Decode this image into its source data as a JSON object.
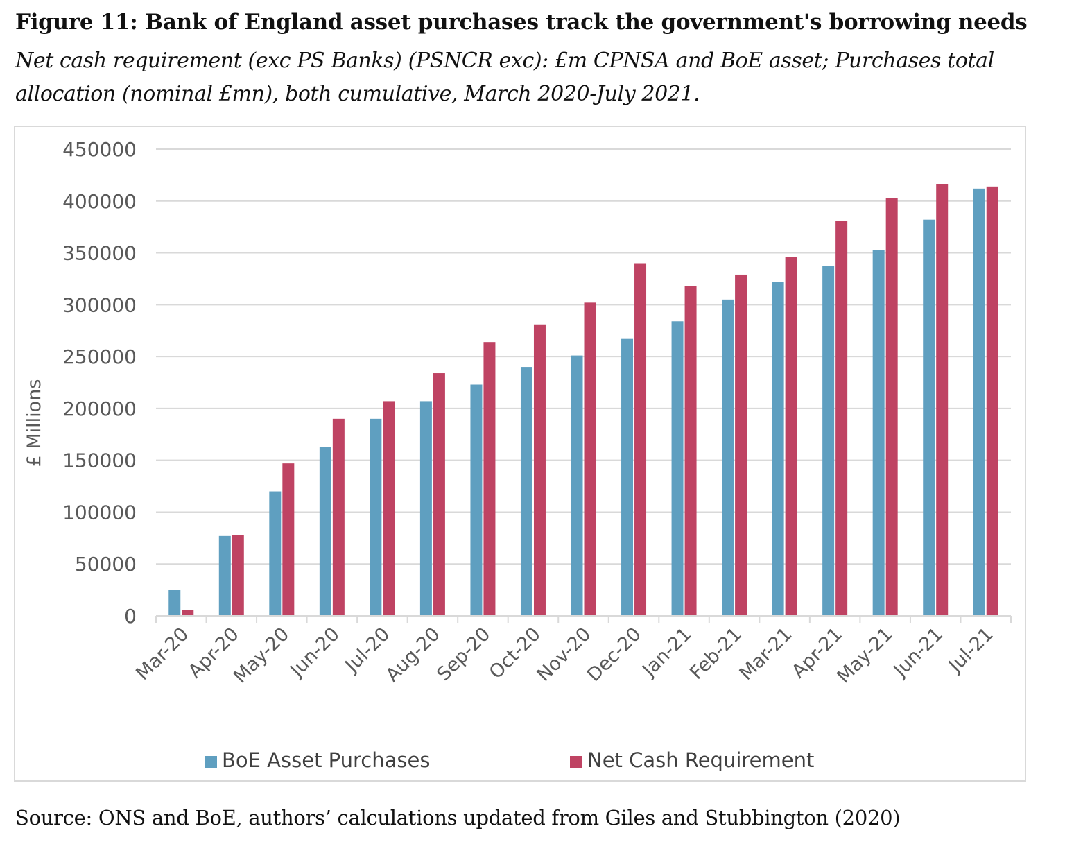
{
  "figure": {
    "title": "Figure 11: Bank of England asset purchases track the government's borrowing needs",
    "subtitle": "Net cash requirement (exc PS Banks) (PSNCR exc): £m CPNSA and BoE asset; Purchases total allocation (nominal £mn), both cumulative, March 2020-July 2021.",
    "source": "Source: ONS and BoE, authors’ calculations updated from Giles and Stubbington (2020)"
  },
  "colors": {
    "boe": "#5f9fc0",
    "ncr": "#bf4363",
    "grid": "#d9d9d9",
    "axis_text": "#595959"
  },
  "chart_data": {
    "type": "bar",
    "title": "",
    "xlabel": "",
    "ylabel": "£ Millions",
    "ylim": [
      0,
      450000
    ],
    "yticks": [
      0,
      50000,
      100000,
      150000,
      200000,
      250000,
      300000,
      350000,
      400000,
      450000
    ],
    "grid": true,
    "legend": "bottom",
    "categories": [
      "Mar-20",
      "Apr-20",
      "May-20",
      "Jun-20",
      "Jul-20",
      "Aug-20",
      "Sep-20",
      "Oct-20",
      "Nov-20",
      "Dec-20",
      "Jan-21",
      "Feb-21",
      "Mar-21",
      "Apr-21",
      "May-21",
      "Jun-21",
      "Jul-21"
    ],
    "series": [
      {
        "name": "BoE Asset Purchases",
        "values": [
          25000,
          77000,
          120000,
          163000,
          190000,
          207000,
          223000,
          240000,
          251000,
          267000,
          284000,
          305000,
          322000,
          337000,
          353000,
          382000,
          412000
        ]
      },
      {
        "name": "Net Cash Requirement",
        "values": [
          6000,
          78000,
          147000,
          190000,
          207000,
          234000,
          264000,
          281000,
          302000,
          340000,
          318000,
          329000,
          346000,
          381000,
          403000,
          416000,
          414000
        ]
      }
    ]
  }
}
